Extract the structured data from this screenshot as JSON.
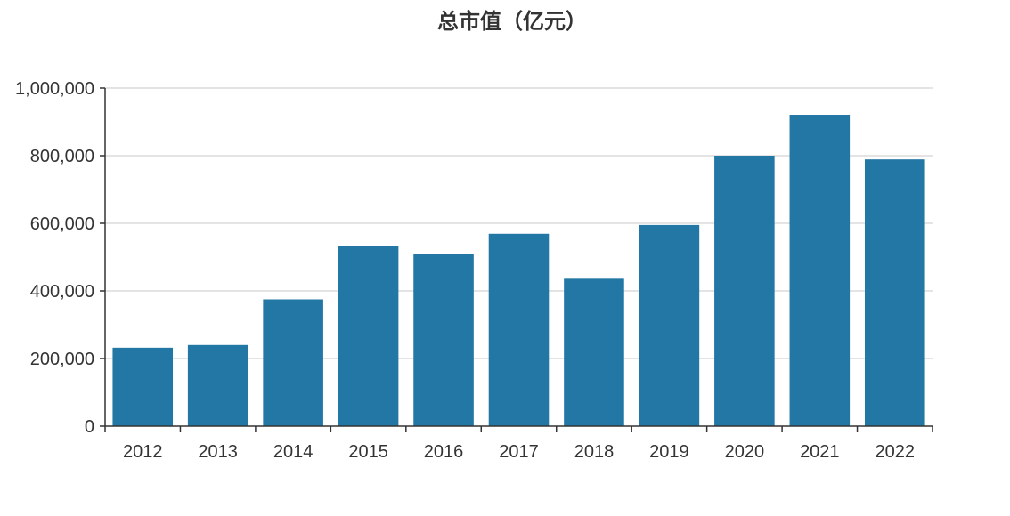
{
  "chart_data": {
    "type": "bar",
    "title": "总市值（亿元）",
    "xlabel": "",
    "ylabel": "",
    "categories": [
      "2012",
      "2013",
      "2014",
      "2015",
      "2016",
      "2017",
      "2018",
      "2019",
      "2020",
      "2021",
      "2022"
    ],
    "values": [
      232000,
      240000,
      375000,
      533000,
      509000,
      569000,
      436000,
      595000,
      800000,
      921000,
      789000
    ],
    "ylim": [
      0,
      1000000
    ],
    "yticks": [
      0,
      200000,
      400000,
      600000,
      800000,
      1000000
    ],
    "ytick_labels": [
      "0",
      "200,000",
      "400,000",
      "600,000",
      "800,000",
      "1,000,000"
    ],
    "grid": true,
    "bar_color": "#2277a4",
    "grid_color": "#c8c8c8",
    "axis_color": "#333333"
  }
}
